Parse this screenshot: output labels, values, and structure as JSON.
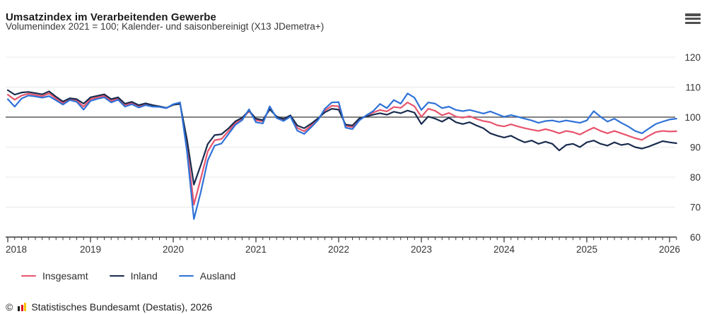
{
  "header": {
    "title": "Umsatzindex im Verarbeitenden Gewerbe",
    "subtitle": "Volumenindex 2021 = 100; Kalender- und saisonbereinigt (X13 JDemetra+)"
  },
  "menu": {
    "icon": "hamburger-menu-icon"
  },
  "chart_data": {
    "type": "line",
    "title": "Umsatzindex im Verarbeitenden Gewerbe",
    "subtitle": "Volumenindex 2021 = 100; Kalender- und saisonbereinigt (X13 JDemetra+)",
    "x_unit": "month",
    "x_start": "2018-01",
    "x_end": "2026-02",
    "x_tick_labels": [
      "2018",
      "2019",
      "2020",
      "2021",
      "2022",
      "2023",
      "2024",
      "2025",
      "2026"
    ],
    "ylim": [
      60,
      120
    ],
    "y_ticks": [
      60,
      70,
      80,
      90,
      100,
      110,
      120
    ],
    "baseline": 100,
    "grid": true,
    "legend_position": "bottom",
    "colors": {
      "grid": "#e9e9e9",
      "baseline": "#5a5a5a",
      "axis": "#3c3c3c",
      "tick_label": "#333333"
    },
    "series": [
      {
        "name": "Insgesamt",
        "color": "#e8546d",
        "values": [
          107.5,
          105.8,
          107.2,
          107.8,
          107.4,
          107.0,
          107.9,
          106.2,
          104.7,
          106.0,
          105.5,
          103.5,
          106.0,
          106.6,
          107.1,
          105.4,
          106.2,
          104.0,
          104.7,
          103.6,
          104.2,
          103.7,
          103.5,
          103.0,
          104.1,
          104.6,
          90.5,
          70.8,
          79.5,
          88.5,
          92.3,
          92.7,
          95.3,
          98.0,
          99.4,
          102.0,
          99.0,
          98.6,
          103.0,
          100.0,
          99.1,
          100.4,
          96.4,
          95.3,
          97.2,
          99.3,
          102.2,
          103.8,
          103.6,
          97.1,
          96.7,
          99.3,
          100.4,
          101.5,
          102.4,
          101.9,
          103.4,
          103.1,
          104.9,
          103.6,
          100.1,
          102.8,
          102.1,
          100.6,
          101.4,
          100.2,
          99.8,
          100.3,
          99.4,
          98.7,
          98.3,
          97.3,
          96.9,
          97.6,
          96.9,
          96.3,
          95.8,
          95.4,
          96.0,
          95.4,
          94.6,
          95.4,
          95.0,
          94.2,
          95.4,
          96.5,
          95.4,
          94.6,
          95.4,
          94.6,
          93.8,
          93.0,
          92.4,
          93.8,
          95.0,
          95.4,
          95.2,
          95.3
        ]
      },
      {
        "name": "Inland",
        "color": "#1a2c4e",
        "values": [
          109.0,
          107.5,
          108.2,
          108.4,
          108.0,
          107.6,
          108.6,
          106.8,
          105.2,
          106.3,
          106.0,
          104.5,
          106.6,
          107.1,
          107.6,
          106.0,
          106.6,
          104.5,
          105.1,
          104.0,
          104.6,
          104.0,
          103.6,
          103.1,
          104.1,
          104.4,
          92.5,
          77.5,
          84.0,
          91.0,
          94.0,
          94.3,
          96.2,
          98.6,
          99.8,
          102.2,
          99.5,
          99.0,
          102.6,
          100.2,
          99.4,
          100.6,
          97.2,
          96.3,
          97.8,
          99.6,
          101.6,
          102.8,
          102.5,
          97.5,
          97.2,
          99.6,
          100.2,
          100.8,
          101.3,
          100.8,
          101.8,
          101.3,
          102.2,
          101.5,
          97.7,
          100.2,
          99.5,
          98.5,
          99.8,
          98.3,
          97.7,
          98.3,
          97.2,
          96.3,
          94.6,
          93.8,
          93.2,
          93.8,
          92.6,
          91.6,
          92.2,
          91.1,
          91.8,
          91.1,
          88.9,
          90.7,
          91.1,
          90.0,
          91.6,
          92.2,
          91.1,
          90.5,
          91.6,
          90.7,
          91.1,
          90.0,
          89.5,
          90.2,
          91.1,
          92.0,
          91.6,
          91.3
        ]
      },
      {
        "name": "Ausland",
        "color": "#2f72d8",
        "values": [
          106.0,
          103.5,
          106.2,
          107.2,
          106.9,
          106.5,
          107.0,
          105.6,
          104.2,
          105.7,
          105.1,
          102.5,
          105.4,
          106.1,
          106.6,
          104.9,
          105.8,
          103.5,
          104.3,
          103.2,
          104.0,
          103.5,
          103.4,
          103.0,
          104.3,
          104.9,
          88.5,
          66.0,
          75.0,
          85.5,
          90.5,
          91.2,
          94.3,
          97.4,
          99.0,
          102.6,
          98.3,
          97.9,
          103.6,
          99.7,
          98.7,
          100.2,
          95.5,
          94.4,
          96.6,
          99.0,
          102.8,
          104.9,
          105.0,
          96.5,
          96.0,
          98.9,
          100.6,
          102.0,
          104.4,
          103.0,
          105.7,
          104.5,
          107.9,
          106.5,
          102.4,
          104.9,
          104.5,
          103.0,
          103.5,
          102.4,
          102.0,
          102.4,
          101.8,
          101.2,
          101.9,
          101.0,
          100.1,
          100.7,
          100.1,
          99.5,
          98.9,
          98.1,
          98.7,
          98.9,
          98.4,
          98.9,
          98.5,
          98.1,
          98.9,
          102.0,
          100.1,
          98.5,
          99.5,
          98.1,
          96.9,
          95.4,
          94.6,
          96.2,
          97.7,
          98.5,
          99.2,
          99.5
        ]
      }
    ]
  },
  "footer": {
    "copyright_symbol": "©",
    "source": "Statistisches Bundesamt (Destatis), 2026"
  }
}
